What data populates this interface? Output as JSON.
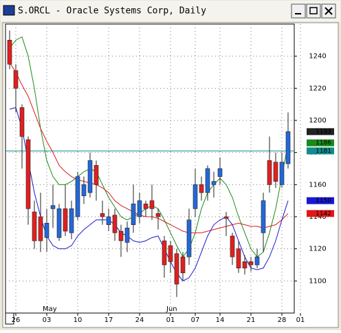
{
  "window": {
    "title": "S.ORCL - Oracle Systems Corp, Daily"
  },
  "chart_data": {
    "type": "candlestick",
    "categories": [
      null,
      "26",
      null,
      null,
      null,
      null,
      "03",
      null,
      null,
      null,
      null,
      "10",
      null,
      null,
      null,
      null,
      "17",
      null,
      null,
      null,
      null,
      "24",
      null,
      null,
      null,
      null,
      "01",
      null,
      null,
      null,
      "07",
      null,
      null,
      null,
      "14",
      null,
      null,
      null,
      null,
      "21",
      null,
      null,
      null,
      null,
      "28",
      null,
      null,
      "01"
    ],
    "months": [
      null,
      null,
      null,
      null,
      null,
      null,
      "May",
      null,
      null,
      null,
      null,
      null,
      null,
      null,
      null,
      null,
      null,
      null,
      null,
      null,
      null,
      null,
      null,
      null,
      null,
      null,
      "Jun",
      null,
      null,
      null,
      null,
      null,
      null,
      null,
      null,
      null,
      null,
      null,
      null,
      null,
      null,
      null,
      null,
      null,
      null,
      null,
      null,
      null
    ],
    "open": [
      1250,
      1231,
      1208,
      1188,
      1143,
      1140,
      1127,
      1145,
      1127,
      1145,
      1130,
      1140,
      1153,
      1155,
      1172,
      1142,
      1135,
      1141,
      1131,
      1124,
      1135,
      1140,
      1148,
      1150,
      1142,
      1125,
      1122,
      1117,
      1115,
      1115,
      1145,
      1160,
      1155,
      1160,
      1165,
      1140,
      1128,
      1120,
      1112,
      1112,
      1110,
      1130,
      1175,
      1174,
      1160,
      1173,
      null,
      null
    ],
    "high": [
      1256,
      1235,
      1210,
      1190,
      1150,
      1155,
      1145,
      1160,
      1148,
      1160,
      1150,
      1168,
      1165,
      1180,
      1175,
      1150,
      1145,
      1145,
      1135,
      1137,
      1160,
      1155,
      1150,
      1160,
      1145,
      1128,
      1125,
      1120,
      1118,
      1145,
      1170,
      1165,
      1172,
      1168,
      1177,
      1143,
      1130,
      1125,
      1116,
      1115,
      1120,
      1155,
      1190,
      1180,
      1180,
      1205,
      null,
      null
    ],
    "low": [
      1232,
      1205,
      1170,
      1135,
      1120,
      1118,
      1118,
      1133,
      1125,
      1128,
      1126,
      1138,
      1148,
      1152,
      1150,
      1135,
      1131,
      1125,
      1115,
      1118,
      1130,
      1136,
      1140,
      1138,
      1132,
      1102,
      1105,
      1090,
      1100,
      1110,
      1140,
      1150,
      1150,
      1152,
      1160,
      1128,
      1110,
      1105,
      1104,
      1106,
      1108,
      1118,
      1155,
      1158,
      1158,
      1170,
      null,
      null
    ],
    "close": [
      1235,
      1220,
      1190,
      1145,
      1125,
      1125,
      1136,
      1147,
      1145,
      1131,
      1145,
      1165,
      1160,
      1175,
      1160,
      1140,
      1140,
      1130,
      1125,
      1133,
      1148,
      1150,
      1145,
      1145,
      1140,
      1110,
      1112,
      1098,
      1105,
      1138,
      1160,
      1155,
      1170,
      1162,
      1170,
      1139,
      1115,
      1108,
      1108,
      1110,
      1115,
      1150,
      1160,
      1162,
      1174,
      1193,
      null,
      null
    ],
    "up_color": "#2468d8",
    "down_color": "#e02020",
    "lines": [
      {
        "color": "#1a8a1a",
        "values": [
          1245,
          1250,
          1252,
          1240,
          1220,
          1195,
          1175,
          1165,
          1160,
          1160,
          1162,
          1165,
          1168,
          1170,
          1168,
          1160,
          1152,
          1146,
          1140,
          1138,
          1140,
          1142,
          1145,
          1147,
          1145,
          1138,
          1130,
          1122,
          1115,
          1120,
          1130,
          1145,
          1155,
          1160,
          1164,
          1160,
          1152,
          1140,
          1130,
          1120,
          1115,
          1118,
          1130,
          1145,
          1165,
          1186,
          null,
          null
        ]
      },
      {
        "color": "#e01818",
        "values": [
          1236,
          1230,
          1222,
          1215,
          1205,
          1195,
          1187,
          1180,
          1172,
          1168,
          1165,
          1163,
          1162,
          1161,
          1160,
          1158,
          1155,
          1150,
          1147,
          1145,
          1143,
          1141,
          1140,
          1140,
          1139,
          1137,
          1135,
          1133,
          1131,
          1130,
          1130,
          1130,
          1131,
          1132,
          1133,
          1134,
          1135,
          1136,
          1135,
          1134,
          1134,
          1133,
          1134,
          1135,
          1138,
          1142,
          null,
          null
        ]
      },
      {
        "color": "#1818d0",
        "values": [
          1207,
          1208,
          1195,
          1175,
          1155,
          1140,
          1128,
          1122,
          1120,
          1120,
          1122,
          1128,
          1132,
          1135,
          1138,
          1138,
          1138,
          1135,
          1130,
          1128,
          1125,
          1124,
          1125,
          1127,
          1128,
          1120,
          1112,
          1105,
          1100,
          1102,
          1108,
          1118,
          1128,
          1135,
          1138,
          1140,
          1135,
          1125,
          1115,
          1108,
          1107,
          1108,
          1115,
          1125,
          1138,
          1150,
          null,
          null
        ]
      }
    ],
    "hline": {
      "value": 1181,
      "color": "#108c8c"
    },
    "ylim": [
      1080,
      1260
    ],
    "yticks": [
      1100,
      1120,
      1140,
      1160,
      1180,
      1200,
      1220,
      1240
    ],
    "grid": true
  }
}
